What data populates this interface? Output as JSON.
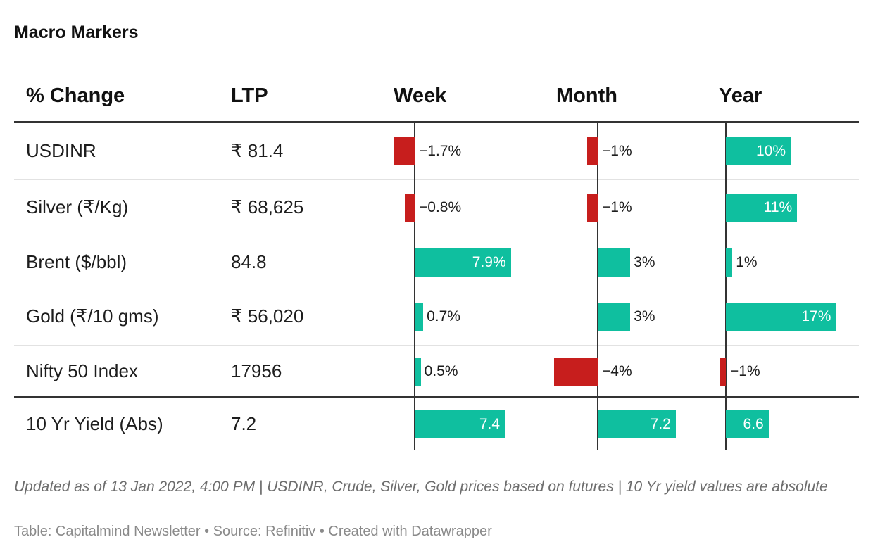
{
  "title": "Macro Markers",
  "headers": {
    "name": "% Change",
    "ltp": "LTP",
    "week": "Week",
    "month": "Month",
    "year": "Year"
  },
  "chart_data": {
    "type": "table",
    "title": "Macro Markers",
    "columns": [
      "% Change",
      "LTP",
      "Week",
      "Month",
      "Year"
    ],
    "rows": [
      {
        "name": "USDINR",
        "ltp": "₹ 81.4",
        "week": -1.7,
        "week_label": "−1.7%",
        "month": -1,
        "month_label": "−1%",
        "year": 10,
        "year_label": "10%"
      },
      {
        "name": "Silver (₹/Kg)",
        "ltp": "₹ 68,625",
        "week": -0.8,
        "week_label": "−0.8%",
        "month": -1,
        "month_label": "−1%",
        "year": 11,
        "year_label": "11%"
      },
      {
        "name": "Brent ($/bbl)",
        "ltp": "84.8",
        "week": 7.9,
        "week_label": "7.9%",
        "month": 3,
        "month_label": "3%",
        "year": 1,
        "year_label": "1%"
      },
      {
        "name": "Gold (₹/10 gms)",
        "ltp": "₹ 56,020",
        "week": 0.7,
        "week_label": "0.7%",
        "month": 3,
        "month_label": "3%",
        "year": 17,
        "year_label": "17%"
      },
      {
        "name": "Nifty 50 Index",
        "ltp": "17956",
        "week": 0.5,
        "week_label": "0.5%",
        "month": -4,
        "month_label": "−4%",
        "year": -1,
        "year_label": "−1%"
      },
      {
        "name": "10 Yr Yield (Abs)",
        "ltp": "7.2",
        "week": 7.4,
        "week_label": "7.4",
        "month": 7.2,
        "month_label": "7.2",
        "year": 6.6,
        "year_label": "6.6"
      }
    ]
  },
  "colors": {
    "positive": "#0fbf9f",
    "negative": "#c71e1d"
  },
  "notes": "Updated as of 13 Jan 2022, 4:00 PM | USDINR, Crude, Silver, Gold prices based on futures | 10 Yr yield values are absolute",
  "footer": "Table: Capitalmind Newsletter • Source: Refinitiv • Created with Datawrapper"
}
